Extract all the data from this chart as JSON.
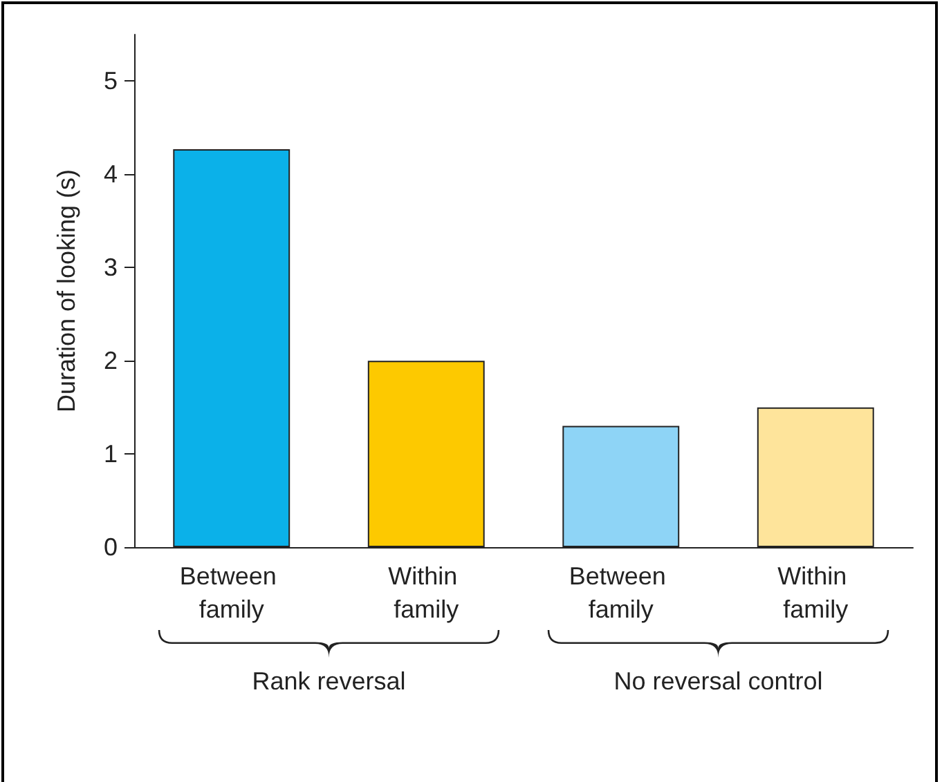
{
  "chart_data": {
    "type": "bar",
    "categories": [
      "Between family",
      "Within family",
      "Between family",
      "Within family"
    ],
    "values": [
      4.27,
      2.0,
      1.3,
      1.5
    ],
    "colors": [
      "#0bb1e9",
      "#fdc900",
      "#8ed4f6",
      "#fee49b"
    ],
    "ylabel": "Duration of looking (s)",
    "ylim": [
      0,
      5.5
    ],
    "yticks": [
      0,
      1,
      2,
      3,
      4,
      5
    ],
    "annotations": [
      "Rank reversal",
      "No reversal control"
    ],
    "grid": false
  }
}
